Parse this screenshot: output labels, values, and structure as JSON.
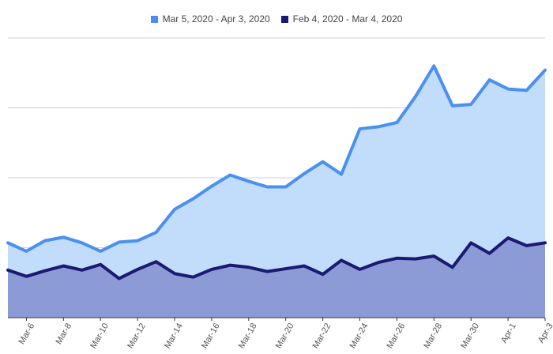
{
  "chart_data": {
    "type": "area",
    "x_labels": [
      "Mar-6",
      "Mar-8",
      "Mar-10",
      "Mar-12",
      "Mar-14",
      "Mar-16",
      "Mar-18",
      "Mar-20",
      "Mar-22",
      "Mar-24",
      "Mar-26",
      "Mar-28",
      "Mar-30",
      "Apr-1",
      "Apr-3"
    ],
    "x": [
      "Mar-5",
      "Mar-6",
      "Mar-7",
      "Mar-8",
      "Mar-9",
      "Mar-10",
      "Mar-11",
      "Mar-12",
      "Mar-13",
      "Mar-14",
      "Mar-15",
      "Mar-16",
      "Mar-17",
      "Mar-18",
      "Mar-19",
      "Mar-20",
      "Mar-21",
      "Mar-22",
      "Mar-23",
      "Mar-24",
      "Mar-25",
      "Mar-26",
      "Mar-27",
      "Mar-28",
      "Mar-29",
      "Mar-30",
      "Mar-31",
      "Apr-1",
      "Apr-2",
      "Apr-3"
    ],
    "ylim": [
      0,
      4
    ],
    "grid": true,
    "legend_position": "top-center",
    "series": [
      {
        "name": "Mar 5, 2020 - Apr 3, 2020",
        "color": "#4a90f0",
        "fill": "#c2dcfb",
        "values": [
          1.07,
          0.95,
          1.1,
          1.15,
          1.07,
          0.95,
          1.08,
          1.1,
          1.22,
          1.55,
          1.7,
          1.88,
          2.04,
          1.95,
          1.87,
          1.87,
          2.06,
          2.23,
          2.05,
          2.7,
          2.73,
          2.79,
          3.16,
          3.6,
          3.03,
          3.05,
          3.4,
          3.27,
          3.25,
          3.54
        ]
      },
      {
        "name": "Feb 4, 2020 - Mar 4, 2020",
        "color": "#1a1a72",
        "fill": "#8c9bd5",
        "values": [
          0.68,
          0.59,
          0.67,
          0.74,
          0.68,
          0.76,
          0.56,
          0.69,
          0.8,
          0.63,
          0.58,
          0.69,
          0.75,
          0.72,
          0.66,
          0.7,
          0.74,
          0.62,
          0.82,
          0.69,
          0.79,
          0.85,
          0.84,
          0.88,
          0.72,
          1.07,
          0.92,
          1.14,
          1.03,
          1.07
        ]
      }
    ]
  }
}
